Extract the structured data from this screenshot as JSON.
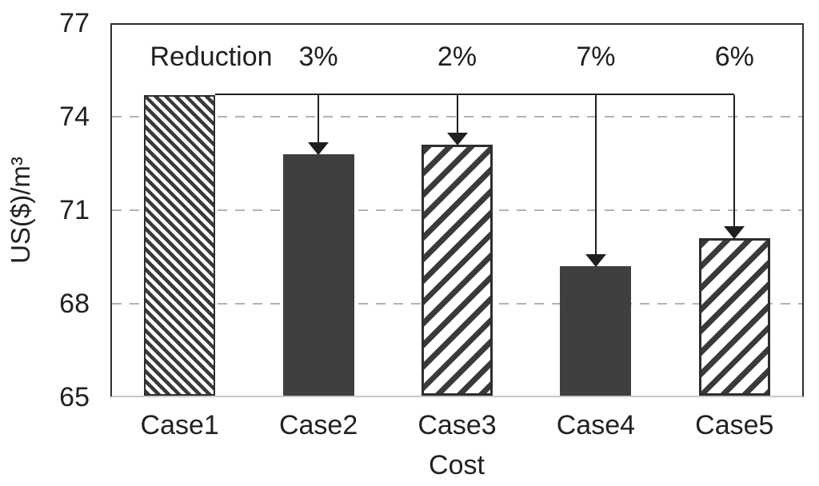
{
  "chart_data": {
    "type": "bar",
    "title": "",
    "xlabel": "Cost",
    "ylabel": "US($)/m³",
    "categories": [
      "Case1",
      "Case2",
      "Case3",
      "Case4",
      "Case5"
    ],
    "values": [
      74.7,
      72.8,
      73.1,
      69.2,
      70.1
    ],
    "ylim": [
      65,
      77
    ],
    "yticks": [
      77,
      74,
      71,
      68,
      65
    ],
    "gridline_values": [
      74,
      71,
      68
    ],
    "grid": "horizontal-dashed",
    "legend_position": "none",
    "bar_styles": [
      "hatch-backslash-dense",
      "solid-dark",
      "hatch-slash",
      "solid-dark",
      "hatch-slash"
    ],
    "annotation": {
      "label": "Reduction",
      "baseline_case": "Case1",
      "reductions": [
        {
          "category": "Case2",
          "percent": "3%"
        },
        {
          "category": "Case3",
          "percent": "2%"
        },
        {
          "category": "Case4",
          "percent": "7%"
        },
        {
          "category": "Case5",
          "percent": "6%"
        }
      ]
    },
    "colors": {
      "bar_solid": "#3f3f3f",
      "hatch_stroke": "#3a3a3a",
      "bar_border": "#2e2e2e",
      "grid": "#b3b3b3",
      "baseline": "#c8c8c8",
      "annotation_line": "#1f1f1f",
      "text": "#212121",
      "background": "#ffffff"
    }
  }
}
